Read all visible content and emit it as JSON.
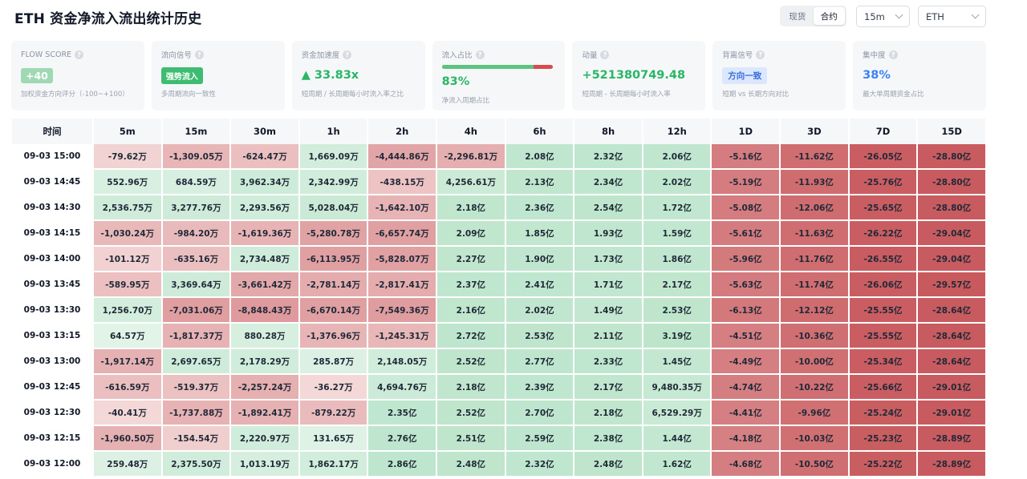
{
  "header": {
    "title": "ETH 资金净流入流出统计历史",
    "segment": {
      "options": [
        "现货",
        "合约"
      ],
      "active": 1
    },
    "interval_select": "15m",
    "coin_select": "ETH"
  },
  "cards": [
    {
      "label": "FLOW SCORE",
      "value": "+40",
      "value_style": "badge-green",
      "desc": "加权资金方向评分（-100~+100）"
    },
    {
      "label": "流向信号",
      "value": "强势流入",
      "value_style": "badge-green-sm",
      "desc": "多周期流向一致性"
    },
    {
      "label": "资金加速度",
      "value": "▲ 33.83x",
      "value_style": "txt-green",
      "desc": "短周期 / 长周期每小时流入率之比"
    },
    {
      "label": "流入占比",
      "value": "83%",
      "value_style": "txt-green",
      "desc": "净流入周期占比",
      "bar_fraction": 0.83
    },
    {
      "label": "动量",
      "value": "+521380749.48",
      "value_style": "txt-green",
      "desc": "短周期 - 长周期每小时流入率"
    },
    {
      "label": "背离信号",
      "value": "方向一致",
      "value_style": "badge-blue",
      "desc": "短期 vs 长期方向对比"
    },
    {
      "label": "集中度",
      "value": "38%",
      "value_style": "txt-blue",
      "desc": "最大单周期资金占比"
    }
  ],
  "colors": {
    "green_light": "#e6f5eb",
    "green_strong": "#a9ddbd",
    "red_light": "#f6dede",
    "red_strong": "#c85a5e"
  },
  "table": {
    "columns": [
      "时间",
      "5m",
      "15m",
      "30m",
      "1h",
      "2h",
      "4h",
      "6h",
      "8h",
      "12h",
      "1D",
      "3D",
      "7D",
      "15D"
    ],
    "rows": [
      {
        "time": "09-03 15:00",
        "cells": [
          "-79.62万",
          "-1,309.05万",
          "-624.47万",
          "1,669.09万",
          "-4,444.86万",
          "-2,296.81万",
          "2.08亿",
          "2.32亿",
          "2.06亿",
          "-5.16亿",
          "-11.62亿",
          "-26.05亿",
          "-28.80亿"
        ]
      },
      {
        "time": "09-03 14:45",
        "cells": [
          "552.96万",
          "684.59万",
          "3,962.34万",
          "2,342.99万",
          "-438.15万",
          "4,256.61万",
          "2.13亿",
          "2.34亿",
          "2.02亿",
          "-5.19亿",
          "-11.93亿",
          "-25.76亿",
          "-28.80亿"
        ]
      },
      {
        "time": "09-03 14:30",
        "cells": [
          "2,536.75万",
          "3,277.76万",
          "2,293.56万",
          "5,028.04万",
          "-1,642.10万",
          "2.18亿",
          "2.36亿",
          "2.54亿",
          "1.72亿",
          "-5.08亿",
          "-12.06亿",
          "-25.65亿",
          "-28.80亿"
        ]
      },
      {
        "time": "09-03 14:15",
        "cells": [
          "-1,030.24万",
          "-984.20万",
          "-1,619.36万",
          "-5,280.78万",
          "-6,657.74万",
          "2.09亿",
          "1.85亿",
          "1.93亿",
          "1.59亿",
          "-5.61亿",
          "-11.63亿",
          "-26.22亿",
          "-29.04亿"
        ]
      },
      {
        "time": "09-03 14:00",
        "cells": [
          "-101.12万",
          "-635.16万",
          "2,734.48万",
          "-6,113.95万",
          "-5,828.07万",
          "2.27亿",
          "1.90亿",
          "1.73亿",
          "1.86亿",
          "-5.96亿",
          "-11.76亿",
          "-26.55亿",
          "-29.04亿"
        ]
      },
      {
        "time": "09-03 13:45",
        "cells": [
          "-589.95万",
          "3,369.64万",
          "-3,661.42万",
          "-2,781.14万",
          "-2,817.41万",
          "2.37亿",
          "2.41亿",
          "1.71亿",
          "2.17亿",
          "-5.63亿",
          "-11.74亿",
          "-26.06亿",
          "-29.57亿"
        ]
      },
      {
        "time": "09-03 13:30",
        "cells": [
          "1,256.70万",
          "-7,031.06万",
          "-8,848.43万",
          "-6,670.14万",
          "-7,549.36万",
          "2.16亿",
          "2.02亿",
          "1.49亿",
          "2.53亿",
          "-6.13亿",
          "-12.12亿",
          "-25.55亿",
          "-28.64亿"
        ]
      },
      {
        "time": "09-03 13:15",
        "cells": [
          "64.57万",
          "-1,817.37万",
          "880.28万",
          "-1,376.96万",
          "-1,245.31万",
          "2.72亿",
          "2.53亿",
          "2.11亿",
          "3.19亿",
          "-4.51亿",
          "-10.36亿",
          "-25.55亿",
          "-28.64亿"
        ]
      },
      {
        "time": "09-03 13:00",
        "cells": [
          "-1,917.14万",
          "2,697.65万",
          "2,178.29万",
          "285.87万",
          "2,148.05万",
          "2.52亿",
          "2.77亿",
          "2.33亿",
          "1.45亿",
          "-4.49亿",
          "-10.00亿",
          "-25.34亿",
          "-28.64亿"
        ]
      },
      {
        "time": "09-03 12:45",
        "cells": [
          "-616.59万",
          "-519.37万",
          "-2,257.24万",
          "-36.27万",
          "4,694.76万",
          "2.18亿",
          "2.39亿",
          "2.17亿",
          "9,480.35万",
          "-4.74亿",
          "-10.22亿",
          "-25.66亿",
          "-29.01亿"
        ]
      },
      {
        "time": "09-03 12:30",
        "cells": [
          "-40.41万",
          "-1,737.88万",
          "-1,892.41万",
          "-879.22万",
          "2.35亿",
          "2.52亿",
          "2.70亿",
          "2.18亿",
          "6,529.29万",
          "-4.41亿",
          "-9.96亿",
          "-25.24亿",
          "-29.01亿"
        ]
      },
      {
        "time": "09-03 12:15",
        "cells": [
          "-1,960.50万",
          "-154.54万",
          "2,220.97万",
          "131.65万",
          "2.76亿",
          "2.51亿",
          "2.59亿",
          "2.38亿",
          "1.44亿",
          "-4.18亿",
          "-10.03亿",
          "-25.23亿",
          "-28.89亿"
        ]
      },
      {
        "time": "09-03 12:00",
        "cells": [
          "259.48万",
          "2,375.50万",
          "1,013.19万",
          "1,862.17万",
          "2.86亿",
          "2.48亿",
          "2.32亿",
          "2.48亿",
          "1.62亿",
          "-4.68亿",
          "-10.50亿",
          "-25.22亿",
          "-28.89亿"
        ]
      }
    ]
  }
}
